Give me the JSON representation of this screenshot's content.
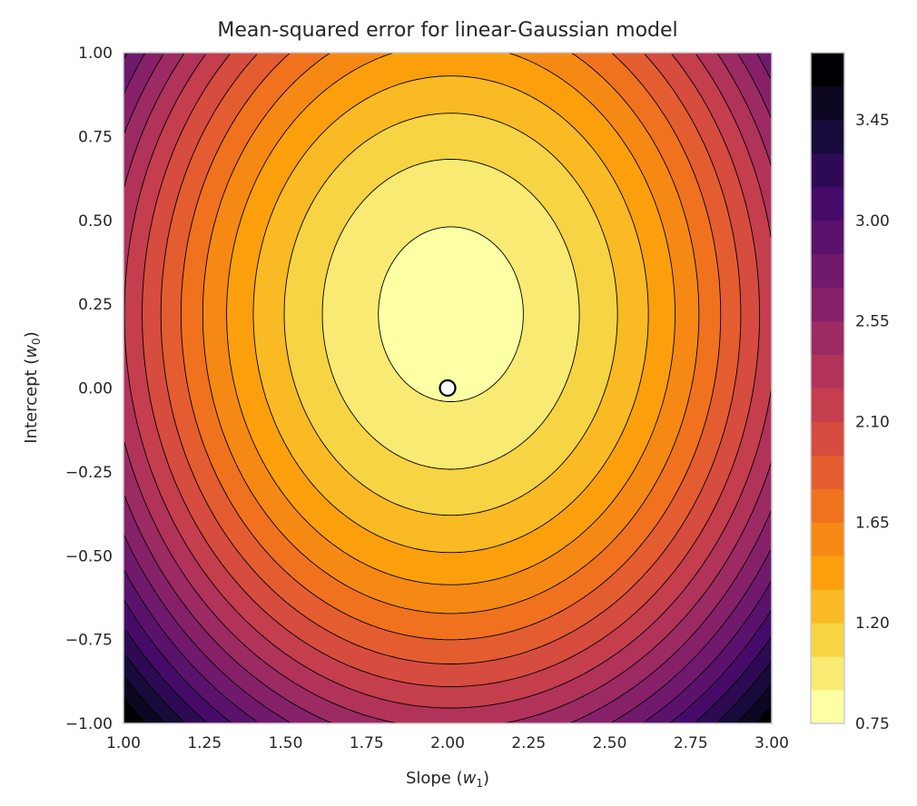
{
  "chart_data": {
    "type": "contour",
    "title": "Mean-squared error for linear-Gaussian model",
    "xlabel": "Slope",
    "xlabel_symbol": "w",
    "xlabel_sub": "1",
    "ylabel": "Intercept",
    "ylabel_symbol": "w",
    "ylabel_sub": "0",
    "xlim": [
      1.0,
      3.0
    ],
    "ylim": [
      -1.0,
      1.0
    ],
    "xticks": [
      "1.00",
      "1.25",
      "1.50",
      "1.75",
      "2.00",
      "2.25",
      "2.50",
      "2.75",
      "3.00"
    ],
    "yticks": [
      "−1.00",
      "−0.75",
      "−0.50",
      "−0.25",
      "0.00",
      "0.25",
      "0.50",
      "0.75",
      "1.00"
    ],
    "surface": {
      "min_value": 0.83,
      "center_w1": 2.01,
      "center_w0": 0.22,
      "coef_w1": 1.4,
      "coef_w0": 1.03
    },
    "levels": {
      "start": 0.75,
      "step": 0.15,
      "count": 20
    },
    "colormap": "inferno_r",
    "colorbar_ticks": [
      "0.75",
      "1.20",
      "1.65",
      "2.10",
      "2.55",
      "3.00",
      "3.45"
    ],
    "colorbar_range": [
      0.75,
      3.75
    ],
    "marker": {
      "w1": 2.0,
      "w0": 0.0,
      "fill": "#ffffff",
      "edge": "#000000"
    },
    "grid": false
  }
}
